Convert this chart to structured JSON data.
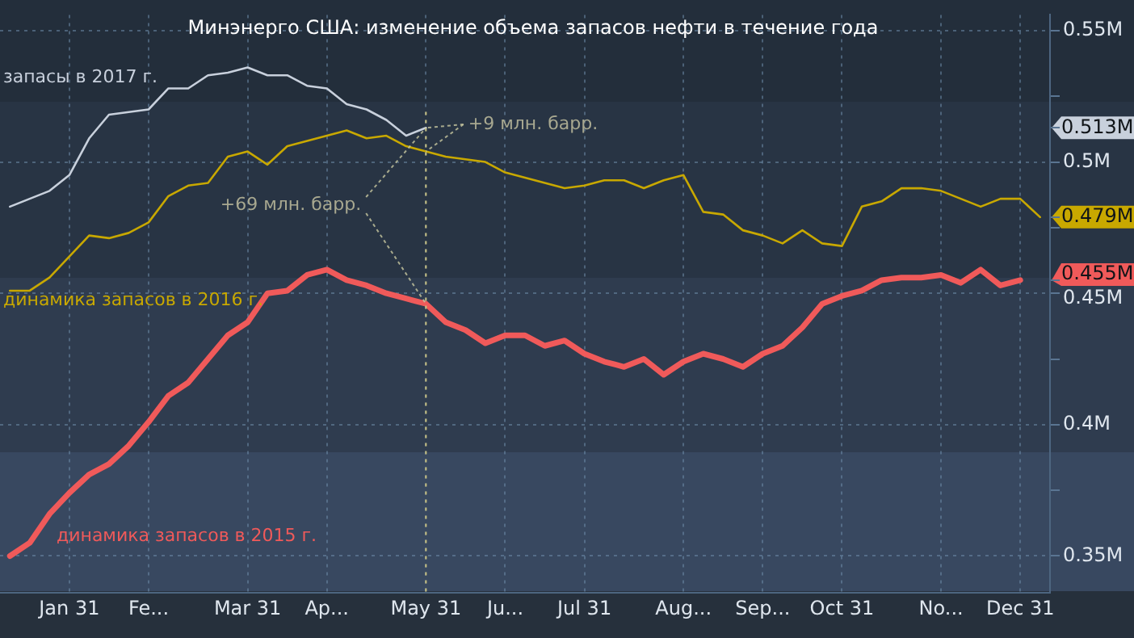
{
  "chart_data": {
    "type": "line",
    "title": "Минэнерго США: изменение объема запасов нефти в течение года",
    "categories": [
      null,
      null,
      null,
      "Jan 31",
      null,
      null,
      null,
      "Fe...",
      null,
      null,
      null,
      null,
      "Mar 31",
      null,
      null,
      null,
      "Ap...",
      null,
      null,
      null,
      null,
      "May 31",
      null,
      null,
      null,
      "Ju...",
      null,
      null,
      null,
      "Jul 31",
      null,
      null,
      null,
      null,
      "Aug...",
      null,
      null,
      null,
      "Sep...",
      null,
      null,
      null,
      "Oct 31",
      null,
      null,
      null,
      null,
      "No...",
      null,
      null,
      null,
      "Dec 31",
      null
    ],
    "series": [
      {
        "name": "запасы в 2017 г.",
        "color": "#c8d0dc",
        "values": [
          0.483,
          0.486,
          0.489,
          0.495,
          0.509,
          0.518,
          0.519,
          0.52,
          0.528,
          0.528,
          0.533,
          0.534,
          0.536,
          0.533,
          0.533,
          0.529,
          0.528,
          0.522,
          0.52,
          0.516,
          0.51,
          0.513,
          null,
          null,
          null,
          null,
          null,
          null,
          null,
          null,
          null,
          null,
          null,
          null,
          null,
          null,
          null,
          null,
          null,
          null,
          null,
          null,
          null,
          null,
          null,
          null,
          null,
          null,
          null,
          null,
          null,
          null,
          null
        ]
      },
      {
        "name": "динамика запасов в 2016 г.",
        "color": "#c8a800",
        "values": [
          0.451,
          0.451,
          0.456,
          0.464,
          0.472,
          0.471,
          0.473,
          0.477,
          0.487,
          0.491,
          0.492,
          0.502,
          0.504,
          0.499,
          0.506,
          0.508,
          0.51,
          0.512,
          0.509,
          0.51,
          0.506,
          0.504,
          0.502,
          0.501,
          0.5,
          0.496,
          0.494,
          0.492,
          0.49,
          0.491,
          0.493,
          0.493,
          0.49,
          0.493,
          0.495,
          0.481,
          0.48,
          0.474,
          0.472,
          0.469,
          0.474,
          0.469,
          0.468,
          0.483,
          0.485,
          0.49,
          0.49,
          0.489,
          0.486,
          0.483,
          0.486,
          0.486,
          0.479
        ]
      },
      {
        "name": "динамика запасов в 2015 г.",
        "color": "#f05a5a",
        "values": [
          0.35,
          0.355,
          0.366,
          0.374,
          0.381,
          0.385,
          0.392,
          0.401,
          0.411,
          0.416,
          0.425,
          0.434,
          0.439,
          0.45,
          0.451,
          0.457,
          0.459,
          0.455,
          0.453,
          0.45,
          0.448,
          0.446,
          0.439,
          0.436,
          0.431,
          0.434,
          0.434,
          0.43,
          0.432,
          0.427,
          0.424,
          0.422,
          0.425,
          0.419,
          0.424,
          0.427,
          0.425,
          0.422,
          0.427,
          0.43,
          0.437,
          0.446,
          0.449,
          0.451,
          0.455,
          0.456,
          0.456,
          0.457,
          0.454,
          0.459,
          0.453,
          0.455,
          null
        ]
      }
    ],
    "ylim": [
      0.336,
      0.556
    ],
    "yticks": [
      {
        "value": 0.35,
        "label": "0.35M"
      },
      {
        "value": 0.375,
        "label": null
      },
      {
        "value": 0.4,
        "label": "0.4M"
      },
      {
        "value": 0.425,
        "label": null
      },
      {
        "value": 0.45,
        "label": "0.45M"
      },
      {
        "value": 0.455,
        "label": "0.455M"
      },
      {
        "value": 0.475,
        "label": null
      },
      {
        "value": 0.479,
        "label": "0.479M"
      },
      {
        "value": 0.5,
        "label": "0.5M"
      },
      {
        "value": 0.513,
        "label": "0.513M"
      },
      {
        "value": 0.525,
        "label": null
      },
      {
        "value": 0.55,
        "label": "0.55M"
      }
    ],
    "ref_lines": [
      {
        "axis": "x",
        "value": "May 31",
        "color": "#c8c080",
        "line_style": "dotted"
      }
    ],
    "annotations": [
      {
        "text": "+9 млн. барр.",
        "x": "May 31",
        "y": 0.513
      },
      {
        "text": "+69 млн. барр.",
        "x": "May 31",
        "y": 0.513
      }
    ],
    "grid": true,
    "legend": false
  }
}
